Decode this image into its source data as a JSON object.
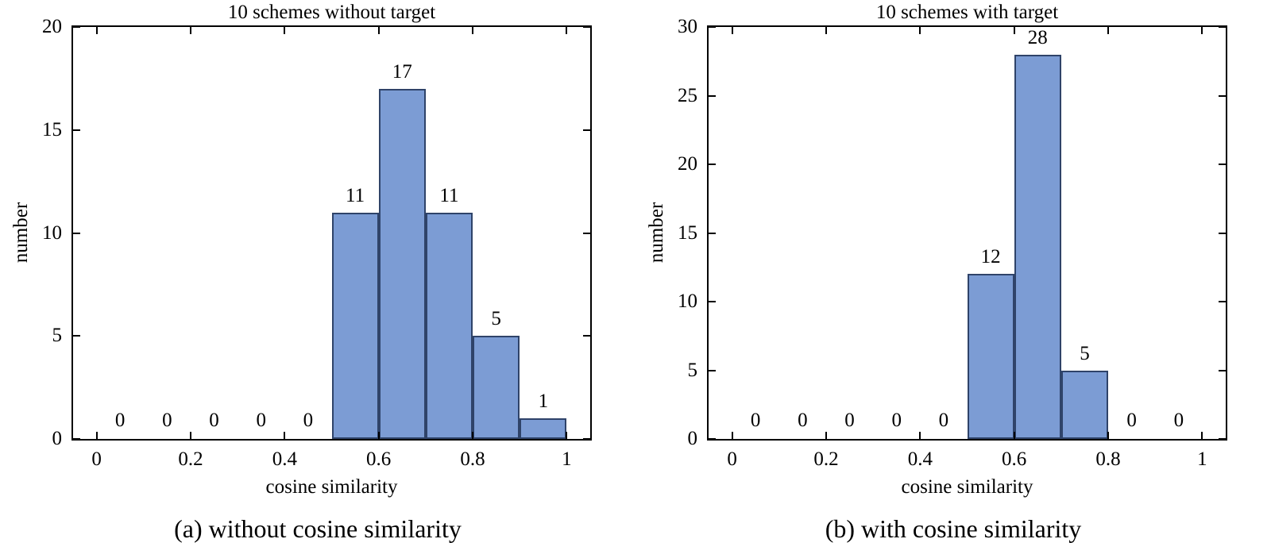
{
  "style": {
    "axis_color": "#000000",
    "text_color": "#000000"
  },
  "chart_data": [
    {
      "type": "bar",
      "title": "10 schemes without target",
      "xlabel": "cosine similarity",
      "ylabel": "number",
      "caption": "(a) without cosine similarity",
      "bin_edges": [
        0,
        0.1,
        0.2,
        0.3,
        0.4,
        0.5,
        0.6,
        0.7,
        0.8,
        0.9,
        1.0
      ],
      "values": [
        0,
        0,
        0,
        0,
        0,
        11,
        17,
        11,
        5,
        1
      ],
      "xlim": [
        -0.05,
        1.05
      ],
      "ylim": [
        0,
        20
      ],
      "xtick_values": [
        0,
        0.2,
        0.4,
        0.6,
        0.8,
        1
      ],
      "xtick_labels": [
        "0",
        "0.2",
        "0.4",
        "0.6",
        "0.8",
        "1"
      ],
      "ytick_values": [
        0,
        5,
        10,
        15,
        20
      ],
      "ytick_labels": [
        "0",
        "5",
        "10",
        "15",
        "20"
      ],
      "grid": false,
      "legend": "none",
      "bar_fill": "#7c9cd4",
      "bar_edge": "#2f4369"
    },
    {
      "type": "bar",
      "title": "10 schemes with target",
      "xlabel": "cosine similarity",
      "ylabel": "number",
      "caption": "(b) with cosine similarity",
      "bin_edges": [
        0,
        0.1,
        0.2,
        0.3,
        0.4,
        0.5,
        0.6,
        0.7,
        0.8,
        0.9,
        1.0
      ],
      "values": [
        0,
        0,
        0,
        0,
        0,
        12,
        28,
        5,
        0,
        0
      ],
      "xlim": [
        -0.05,
        1.05
      ],
      "ylim": [
        0,
        30
      ],
      "xtick_values": [
        0,
        0.2,
        0.4,
        0.6,
        0.8,
        1
      ],
      "xtick_labels": [
        "0",
        "0.2",
        "0.4",
        "0.6",
        "0.8",
        "1"
      ],
      "ytick_values": [
        0,
        5,
        10,
        15,
        20,
        25,
        30
      ],
      "ytick_labels": [
        "0",
        "5",
        "10",
        "15",
        "20",
        "25",
        "30"
      ],
      "grid": false,
      "legend": "none",
      "bar_fill": "#7c9cd4",
      "bar_edge": "#2f4369"
    }
  ]
}
